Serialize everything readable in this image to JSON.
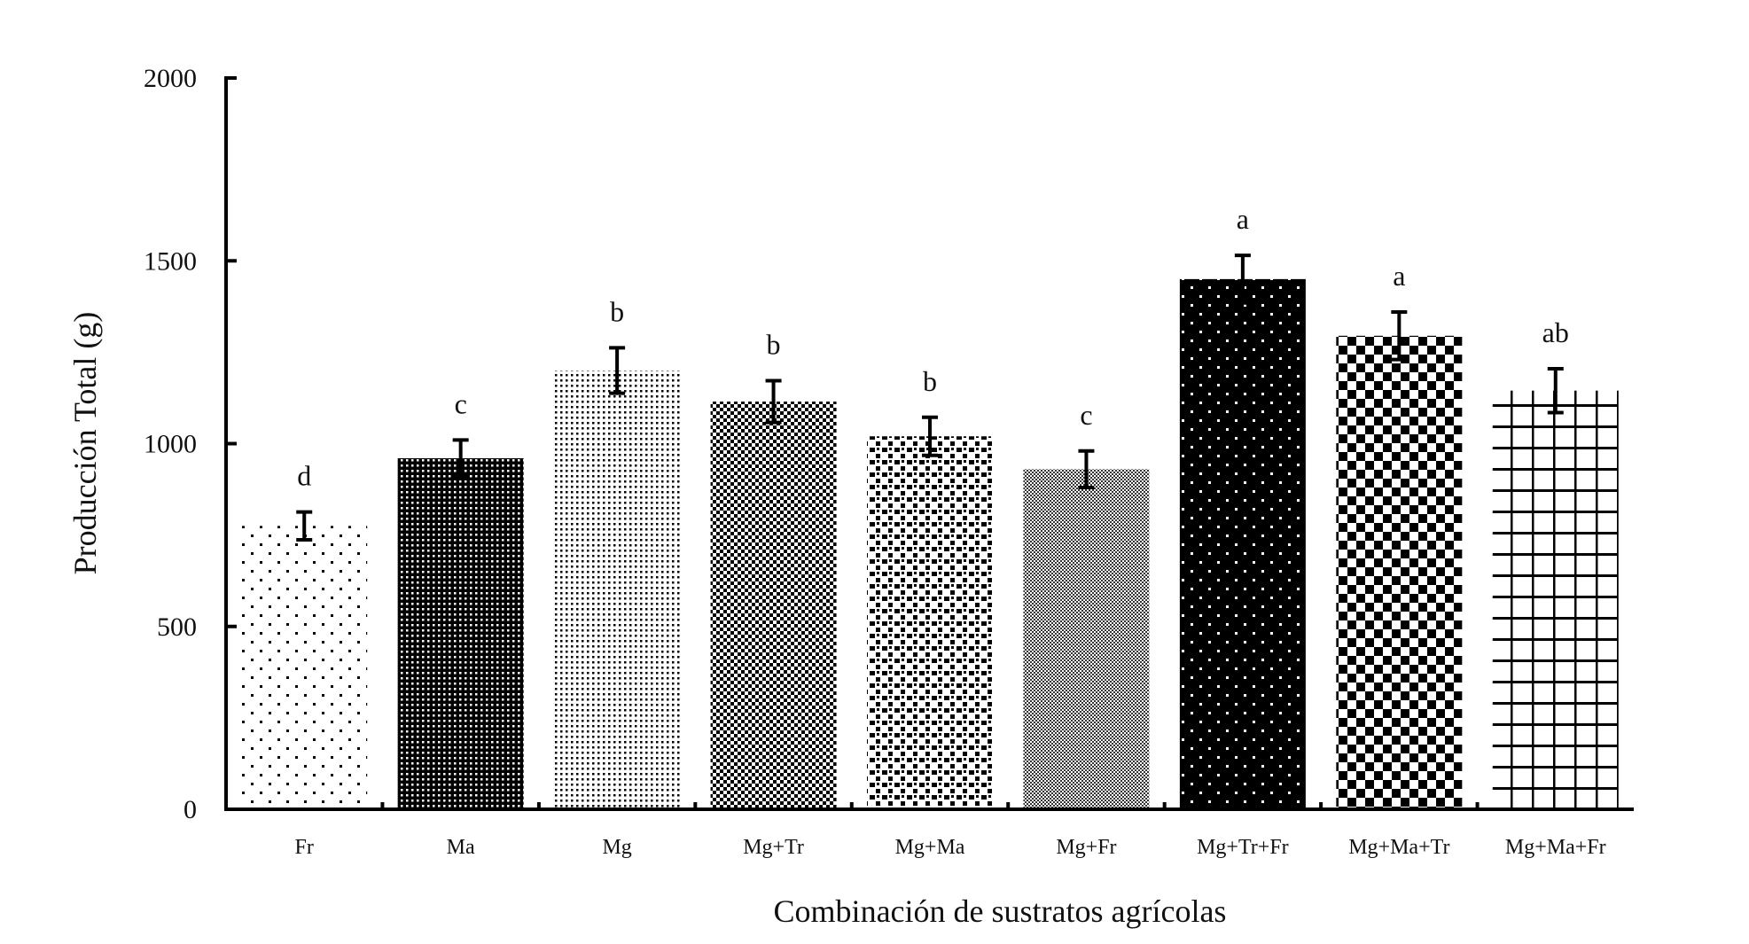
{
  "chart_data": {
    "type": "bar",
    "title": "",
    "xlabel": "Combinación de sustratos agrícolas",
    "ylabel": "Producción Total (g)",
    "ylim": [
      0,
      2000
    ],
    "yticks": [
      0,
      500,
      1000,
      1500,
      2000
    ],
    "grid": false,
    "categories": [
      "Fr",
      "Ma",
      "Mg",
      "Mg+Tr",
      "Mg+Ma",
      "Mg+Fr",
      "Mg+Tr+Fr",
      "Mg+Ma+Tr",
      "Mg+Ma+Fr"
    ],
    "values": [
      775,
      960,
      1200,
      1115,
      1020,
      930,
      1450,
      1295,
      1145
    ],
    "errors": [
      38,
      50,
      62,
      57,
      52,
      50,
      65,
      65,
      60
    ],
    "significance_letters": [
      "d",
      "c",
      "b",
      "b",
      "b",
      "c",
      "a",
      "a",
      "ab"
    ],
    "patterns": [
      "sparse-dots",
      "dense-white-dots-on-black",
      "fine-dots",
      "checker-fine",
      "irregular-squares",
      "fine-grey-checker",
      "white-dots-on-black",
      "checker-large",
      "grid"
    ]
  }
}
